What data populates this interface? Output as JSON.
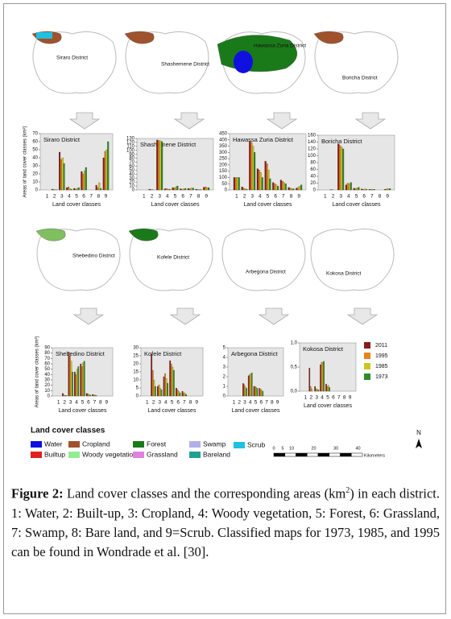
{
  "chart_data": [
    {
      "type": "bar",
      "title": "Siraro District",
      "ylabel": "Areas of land cover classes (km²)",
      "xlabel": "Land cover classes",
      "categories": [
        "1",
        "2",
        "3",
        "4",
        "5",
        "6",
        "7",
        "8",
        "9"
      ],
      "ylim": [
        0,
        70
      ],
      "yticks": [
        0,
        10,
        20,
        30,
        40,
        50,
        60,
        70
      ],
      "series": [
        {
          "name": "2011",
          "color": "#8b1a1a",
          "values": [
            0,
            1,
            47,
            3,
            2,
            23,
            0,
            6,
            40
          ]
        },
        {
          "name": "1995",
          "color": "#e8821e",
          "values": [
            0,
            0.5,
            38,
            4,
            1,
            20,
            0,
            3,
            48
          ]
        },
        {
          "name": "1985",
          "color": "#c8c820",
          "values": [
            0,
            0.3,
            40,
            2,
            2,
            24,
            0,
            9,
            50
          ]
        },
        {
          "name": "1973",
          "color": "#2e8b2e",
          "values": [
            0,
            0.2,
            33,
            1,
            3,
            28,
            0,
            2,
            60
          ]
        }
      ]
    },
    {
      "type": "bar",
      "title": "Shashemene District",
      "xlabel": "Land cover classes",
      "categories": [
        "1",
        "2",
        "3",
        "4",
        "5",
        "6",
        "7",
        "8",
        "9"
      ],
      "ylim": [
        0,
        130
      ],
      "yticks": [
        0,
        10,
        20,
        30,
        40,
        50,
        60,
        70,
        80,
        90,
        100,
        110,
        120,
        130
      ],
      "series": [
        {
          "name": "2011",
          "color": "#8b1a1a",
          "values": [
            0,
            2,
            126,
            3,
            6,
            3,
            4,
            2,
            7
          ]
        },
        {
          "name": "1995",
          "color": "#e8821e",
          "values": [
            0,
            1,
            125,
            4,
            5,
            2,
            3,
            1,
            8
          ]
        },
        {
          "name": "1985",
          "color": "#c8c820",
          "values": [
            0,
            1,
            124,
            2,
            8,
            3,
            5,
            1,
            6
          ]
        },
        {
          "name": "1973",
          "color": "#2e8b2e",
          "values": [
            0,
            0,
            122,
            2,
            10,
            4,
            5,
            1,
            6
          ]
        }
      ]
    },
    {
      "type": "bar",
      "title": "Hawassa Zuria District",
      "xlabel": "Land cover classes",
      "categories": [
        "1",
        "2",
        "3",
        "4",
        "5",
        "6",
        "7",
        "8",
        "9"
      ],
      "ylim": [
        0,
        450
      ],
      "yticks": [
        0,
        50,
        100,
        150,
        200,
        250,
        300,
        350,
        400,
        450
      ],
      "series": [
        {
          "name": "2011",
          "color": "#8b1a1a",
          "values": [
            100,
            25,
            390,
            170,
            230,
            60,
            80,
            20,
            15
          ]
        },
        {
          "name": "1995",
          "color": "#e8821e",
          "values": [
            100,
            15,
            380,
            160,
            210,
            50,
            70,
            15,
            20
          ]
        },
        {
          "name": "1985",
          "color": "#c8c820",
          "values": [
            100,
            10,
            350,
            140,
            160,
            40,
            60,
            10,
            30
          ]
        },
        {
          "name": "1973",
          "color": "#2e8b2e",
          "values": [
            100,
            5,
            300,
            100,
            90,
            30,
            50,
            10,
            40
          ]
        }
      ]
    },
    {
      "type": "bar",
      "title": "Boricha District",
      "xlabel": "Land cover classes",
      "categories": [
        "1",
        "2",
        "3",
        "4",
        "5",
        "6",
        "7",
        "8",
        "9"
      ],
      "ylim": [
        0,
        160
      ],
      "yticks": [
        0,
        20,
        40,
        60,
        80,
        100,
        120,
        140,
        160
      ],
      "series": [
        {
          "name": "2011",
          "color": "#8b1a1a",
          "values": [
            0,
            1,
            135,
            15,
            5,
            3,
            2,
            0,
            2
          ]
        },
        {
          "name": "1995",
          "color": "#e8821e",
          "values": [
            0,
            1,
            130,
            20,
            4,
            2,
            2,
            0,
            3
          ]
        },
        {
          "name": "1985",
          "color": "#c8c820",
          "values": [
            0,
            0,
            125,
            18,
            6,
            3,
            2,
            0,
            4
          ]
        },
        {
          "name": "1973",
          "color": "#2e8b2e",
          "values": [
            0,
            0,
            120,
            22,
            8,
            2,
            2,
            0,
            4
          ]
        }
      ]
    },
    {
      "type": "bar",
      "title": "Shebedino District",
      "ylabel": "Areas of land cover classes (km²)",
      "xlabel": "Land cover classes",
      "categories": [
        "1",
        "2",
        "3",
        "4",
        "5",
        "6",
        "7",
        "8",
        "9"
      ],
      "ylim": [
        0,
        90
      ],
      "yticks": [
        0,
        10,
        20,
        30,
        40,
        50,
        60,
        70,
        80,
        90
      ],
      "series": [
        {
          "name": "2011",
          "color": "#8b1a1a",
          "values": [
            0,
            5,
            82,
            45,
            60,
            5,
            3,
            0,
            0
          ]
        },
        {
          "name": "1995",
          "color": "#e8821e",
          "values": [
            0,
            2,
            75,
            40,
            55,
            4,
            2,
            0,
            0
          ]
        },
        {
          "name": "1985",
          "color": "#c8c820",
          "values": [
            0,
            1,
            65,
            50,
            62,
            3,
            2,
            0,
            0
          ]
        },
        {
          "name": "1973",
          "color": "#2e8b2e",
          "values": [
            0,
            1,
            45,
            55,
            65,
            2,
            1,
            0,
            0
          ]
        }
      ]
    },
    {
      "type": "bar",
      "title": "Kofele District",
      "xlabel": "Land cover classes",
      "categories": [
        "1",
        "2",
        "3",
        "4",
        "5",
        "6",
        "7",
        "8",
        "9"
      ],
      "ylim": [
        0,
        30
      ],
      "yticks": [
        0,
        5,
        10,
        15,
        20,
        25,
        30
      ],
      "series": [
        {
          "name": "2011",
          "color": "#8b1a1a",
          "values": [
            0,
            26,
            6,
            12,
            22,
            5,
            3,
            0,
            0
          ]
        },
        {
          "name": "1995",
          "color": "#e8821e",
          "values": [
            0,
            16,
            7,
            14,
            20,
            4,
            2,
            0,
            0
          ]
        },
        {
          "name": "1985",
          "color": "#c8c820",
          "values": [
            0,
            10,
            5,
            11,
            18,
            3,
            2,
            0,
            0
          ]
        },
        {
          "name": "1973",
          "color": "#2e8b2e",
          "values": [
            0,
            6,
            4,
            8,
            16,
            2,
            1,
            0,
            0
          ]
        }
      ]
    },
    {
      "type": "bar",
      "title": "Arbegona District",
      "xlabel": "Land cover classes",
      "categories": [
        "1",
        "2",
        "3",
        "4",
        "5",
        "6",
        "7",
        "8",
        "9"
      ],
      "ylim": [
        0,
        5
      ],
      "yticks": [
        0,
        1,
        2,
        3,
        4,
        5
      ],
      "series": [
        {
          "name": "2011",
          "color": "#8b1a1a",
          "values": [
            0,
            0,
            1.3,
            2.1,
            1,
            0.8,
            0,
            0,
            0
          ]
        },
        {
          "name": "1995",
          "color": "#e8821e",
          "values": [
            0,
            0,
            1.2,
            2.2,
            1,
            0.7,
            0,
            0,
            0
          ]
        },
        {
          "name": "1985",
          "color": "#c8c820",
          "values": [
            0,
            0,
            1,
            2.3,
            0.9,
            0.6,
            0,
            0,
            0
          ]
        },
        {
          "name": "1973",
          "color": "#2e8b2e",
          "values": [
            0,
            0,
            0.8,
            2.4,
            0.8,
            0.5,
            0,
            0,
            0
          ]
        }
      ]
    },
    {
      "type": "bar",
      "title": "Kokosa District",
      "xlabel": "Land cover classes",
      "legend": "right",
      "categories": [
        "1",
        "2",
        "3",
        "4",
        "5",
        "6",
        "7",
        "8",
        "9"
      ],
      "ylim": [
        0,
        1
      ],
      "yticks": [
        {
          "value": 0,
          "label": "0,0"
        },
        {
          "value": 0.5,
          "label": "0,5"
        },
        {
          "value": 1,
          "label": "1,0"
        }
      ],
      "series": [
        {
          "name": "2011",
          "color": "#8b1a1a",
          "values": [
            0,
            0.48,
            0.1,
            0.55,
            0.15,
            0,
            0,
            0,
            0
          ]
        },
        {
          "name": "1995",
          "color": "#e8821e",
          "values": [
            0,
            0.1,
            0.05,
            0.6,
            0.1,
            0,
            0,
            0,
            0
          ]
        },
        {
          "name": "1985",
          "color": "#c8c820",
          "values": [
            0,
            0.05,
            0.04,
            0.6,
            0.12,
            0,
            0,
            0,
            0
          ]
        },
        {
          "name": "1973",
          "color": "#2e8b2e",
          "values": [
            0,
            0,
            0.03,
            0.62,
            0.08,
            0,
            0,
            0,
            0
          ]
        }
      ]
    }
  ],
  "maps": [
    "Siraro District",
    "Shashemene District",
    "Hawassa Zuria District",
    "Boricha District",
    "Shebedino District",
    "Kofele District",
    "Arbegona District",
    "Kokosa District"
  ],
  "legend": {
    "title": "Land cover classes",
    "items": [
      {
        "label": "Water",
        "color": "#1010e0"
      },
      {
        "label": "Builtup",
        "color": "#e02020"
      },
      {
        "label": "Cropland",
        "color": "#a0522d"
      },
      {
        "label": "Woody vegetation",
        "color": "#90ee90"
      },
      {
        "label": "Forest",
        "color": "#1a7a1a"
      },
      {
        "label": "Grassland",
        "color": "#e080e0"
      },
      {
        "label": "Swamp",
        "color": "#b0b0e8"
      },
      {
        "label": "Bareland",
        "color": "#20a090"
      },
      {
        "label": "Scrub",
        "color": "#20c0e0"
      }
    ]
  },
  "scale_bar": {
    "ticks": [
      "0",
      "5",
      "10",
      "20",
      "30",
      "40"
    ],
    "unit": "Kilometers"
  },
  "north": "N",
  "caption": {
    "label": "Figure 2:",
    "text_before": " Land cover classes and the corresponding areas (km",
    "superscript": "2",
    "text_after": ") in each district. 1: Water, 2: Built-up, 3: Cropland, 4: Woody vegetation, 5: Forest, 6: Grassland, 7: Swamp, 8: Bare land, and 9=Scrub. Classified maps for 1973, 1985, and 1995 can be found in Wondrade et al. [30]."
  }
}
